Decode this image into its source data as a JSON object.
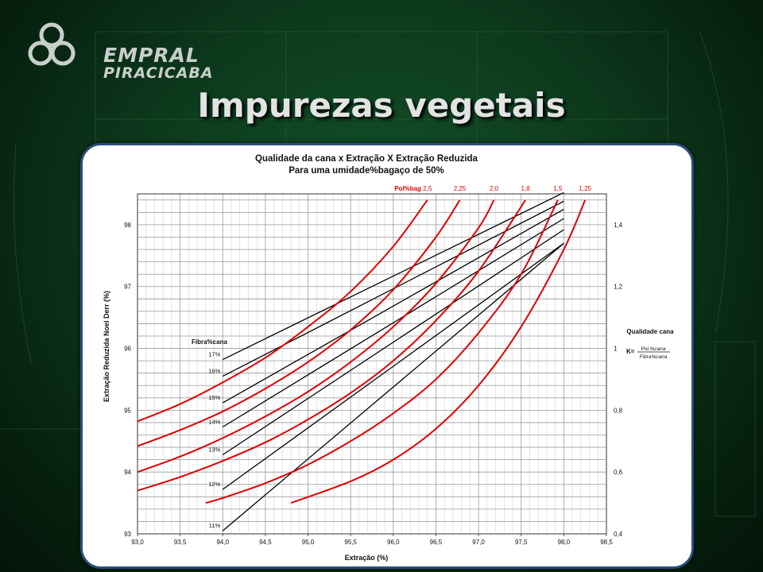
{
  "logo": {
    "line1": "EMPRAL",
    "line2": "PIRACICABA"
  },
  "slide_title": "Impurezas vegetais",
  "chart_data": {
    "type": "line",
    "title": "Qualidade da cana x Extração X Extração Reduzida",
    "subtitle": "Para uma umidade%bagaço de 50%",
    "xlabel": "Extração (%)",
    "ylabel": "Extração Reduzida Noel Derr (%)",
    "xlim": [
      93.0,
      98.5
    ],
    "ylim": [
      93,
      98.5
    ],
    "x_ticks": [
      "93,0",
      "93,5",
      "94,0",
      "94,5",
      "95,0",
      "95,5",
      "96,0",
      "96,5",
      "97,0",
      "97,5",
      "98,0",
      "98,5"
    ],
    "y_ticks": [
      "93",
      "94",
      "95",
      "96",
      "97",
      "98"
    ],
    "y2_ticks": [
      "0,4",
      "0,6",
      "0,8",
      "1",
      "1,2",
      "1,4"
    ],
    "y2_label": "Qualidade cana",
    "y2_formula": {
      "prefix": "K=",
      "numerator": "Pol.%cana",
      "denominator": "Fibra%cana"
    },
    "grid": true,
    "fibra_label": "Fibra%cana",
    "polbag_label": "Pol%bag",
    "fibra_series": [
      {
        "name": "17%",
        "x": [
          94.0,
          98.0
        ],
        "y": [
          95.82,
          98.52
        ]
      },
      {
        "name": "16%",
        "x": [
          94.0,
          98.0
        ],
        "y": [
          95.55,
          98.38
        ]
      },
      {
        "name": "15%",
        "x": [
          94.0,
          98.0
        ],
        "y": [
          95.12,
          98.25
        ]
      },
      {
        "name": "14%",
        "x": [
          94.0,
          98.0
        ],
        "y": [
          94.73,
          98.1
        ]
      },
      {
        "name": "13%",
        "x": [
          94.0,
          98.0
        ],
        "y": [
          94.28,
          97.92
        ]
      },
      {
        "name": "12%",
        "x": [
          94.0,
          98.0
        ],
        "y": [
          93.72,
          97.7
        ]
      },
      {
        "name": "11%",
        "x": [
          94.0,
          98.0
        ],
        "y": [
          93.05,
          97.7
        ]
      }
    ],
    "polbag_series": [
      {
        "name": "2,5",
        "x": [
          93.0,
          93.5,
          94.0,
          94.5,
          95.0,
          95.5,
          96.0,
          96.4
        ],
        "y": [
          94.82,
          95.1,
          95.45,
          95.85,
          96.35,
          96.92,
          97.65,
          98.4
        ]
      },
      {
        "name": "2,25",
        "x": [
          93.0,
          93.5,
          94.0,
          94.5,
          95.0,
          95.5,
          96.0,
          96.5,
          96.78
        ],
        "y": [
          94.42,
          94.68,
          94.98,
          95.35,
          95.78,
          96.3,
          96.95,
          97.8,
          98.4
        ]
      },
      {
        "name": "2,0",
        "x": [
          93.0,
          93.5,
          94.0,
          94.5,
          95.0,
          95.5,
          96.0,
          96.5,
          97.0,
          97.18
        ],
        "y": [
          94.0,
          94.25,
          94.55,
          94.9,
          95.3,
          95.78,
          96.35,
          97.05,
          97.95,
          98.4
        ]
      },
      {
        "name": "1,8",
        "x": [
          93.0,
          93.5,
          94.0,
          94.5,
          95.0,
          95.5,
          96.0,
          96.5,
          97.0,
          97.55
        ],
        "y": [
          93.7,
          93.92,
          94.18,
          94.48,
          94.85,
          95.28,
          95.8,
          96.45,
          97.25,
          98.4
        ]
      },
      {
        "name": "1,5",
        "x": [
          93.8,
          94.0,
          94.5,
          95.0,
          95.5,
          96.0,
          96.5,
          97.0,
          97.5,
          97.93
        ],
        "y": [
          93.5,
          93.58,
          93.82,
          94.12,
          94.5,
          94.95,
          95.5,
          96.25,
          97.2,
          98.4
        ]
      },
      {
        "name": "1,25",
        "x": [
          94.8,
          95.5,
          96.0,
          96.5,
          97.0,
          97.5,
          98.0,
          98.25
        ],
        "y": [
          93.5,
          93.85,
          94.2,
          94.7,
          95.4,
          96.35,
          97.6,
          98.4
        ]
      }
    ]
  }
}
